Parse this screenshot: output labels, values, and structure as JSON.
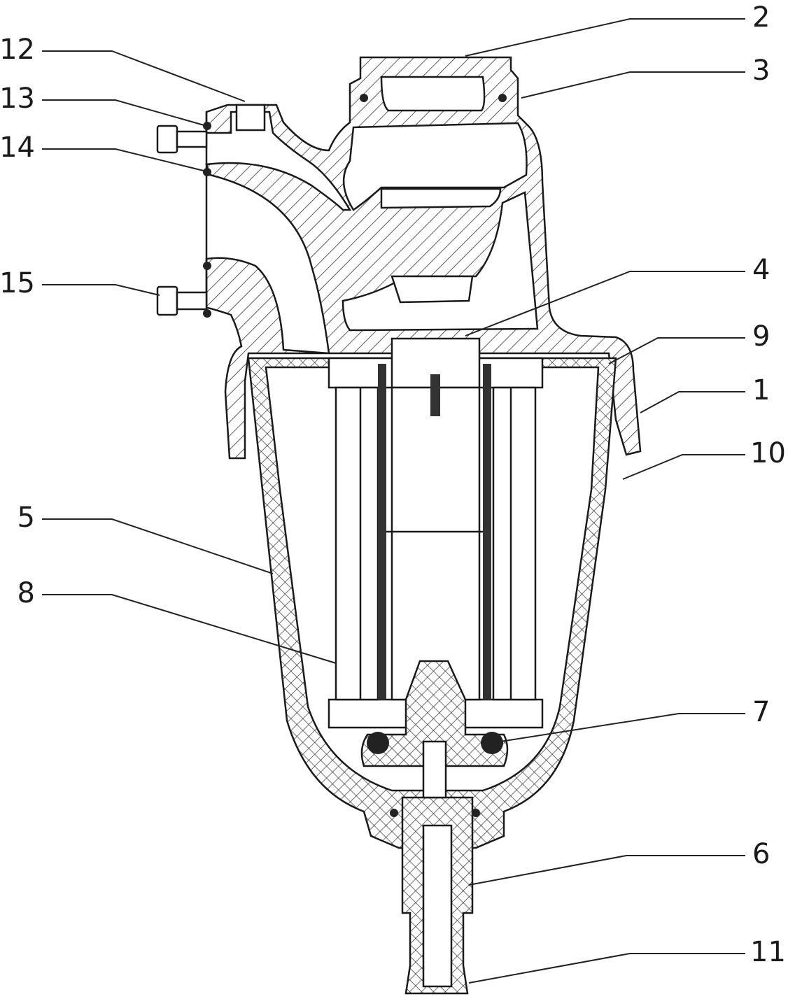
{
  "callouts": [
    {
      "label": "2"
    },
    {
      "label": "3"
    },
    {
      "label": "4"
    },
    {
      "label": "9"
    },
    {
      "label": "1"
    },
    {
      "label": "10"
    },
    {
      "label": "7"
    },
    {
      "label": "6"
    },
    {
      "label": "11"
    },
    {
      "label": "12"
    },
    {
      "label": "13"
    },
    {
      "label": "14"
    },
    {
      "label": "15"
    },
    {
      "label": "5"
    },
    {
      "label": "8"
    }
  ]
}
